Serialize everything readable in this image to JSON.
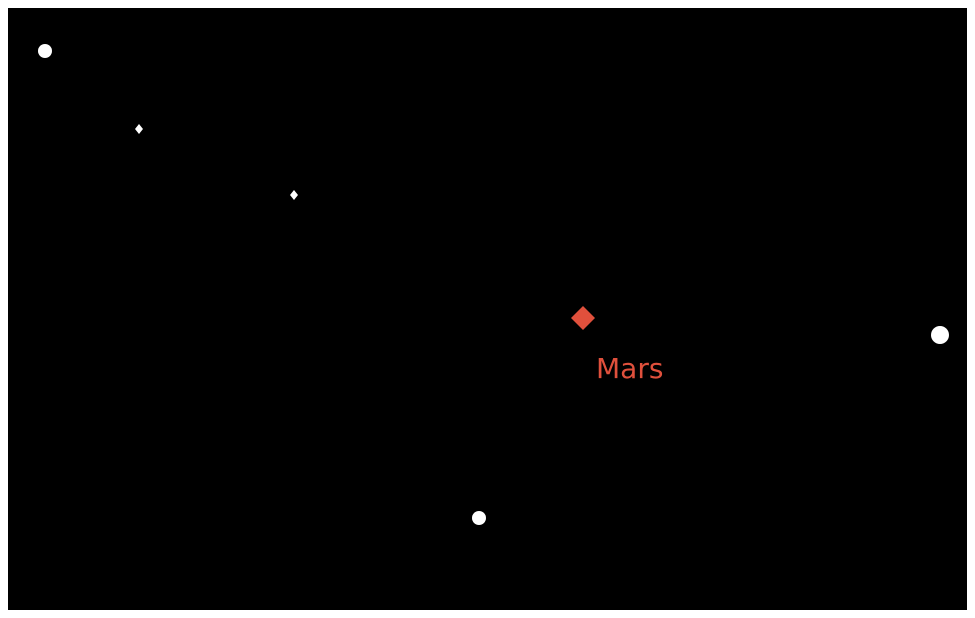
{
  "planet": {
    "name": "Mars"
  }
}
